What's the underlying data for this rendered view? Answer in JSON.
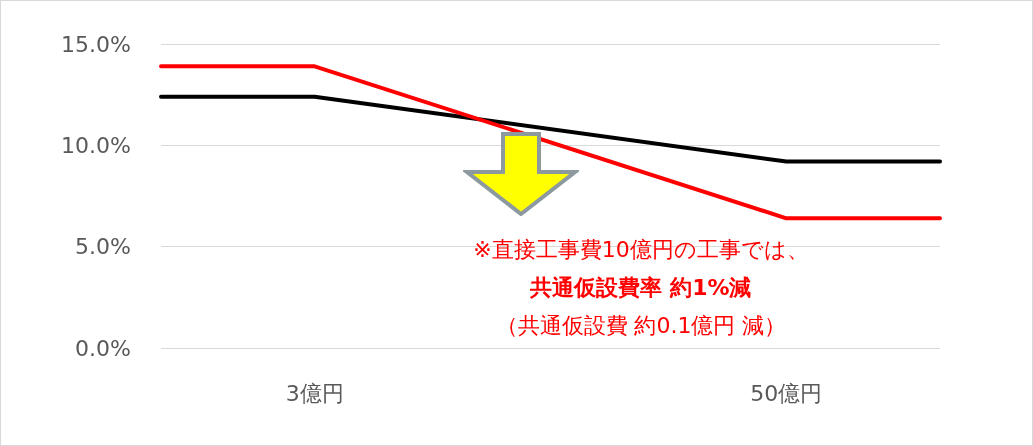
{
  "chart_data": {
    "type": "line",
    "log": "x",
    "xlim": [
      1.2,
      125
    ],
    "xticks": [
      {
        "value": 3,
        "label": "3億円"
      },
      {
        "value": 50,
        "label": "50億円"
      }
    ],
    "ylim": [
      0,
      15
    ],
    "yticks": [
      {
        "value": 0,
        "label": "0.0%"
      },
      {
        "value": 5,
        "label": "5.0%"
      },
      {
        "value": 10,
        "label": "10.0%"
      },
      {
        "value": 15,
        "label": "15.0%"
      }
    ],
    "grid": "y",
    "marker": "none",
    "line_style": "solid",
    "series": [
      {
        "color": "#000000",
        "x": [
          1.2,
          3,
          50,
          125
        ],
        "values": [
          12.4,
          12.4,
          9.2,
          9.2
        ]
      },
      {
        "color": "#ff0000",
        "x": [
          1.2,
          3,
          50,
          125
        ],
        "values": [
          13.9,
          13.9,
          6.4,
          6.4
        ]
      }
    ],
    "annotations": [
      "※直接工事費10億円の工事では、",
      "共通仮設費率 約1%減",
      "（共通仮設費 約0.1億円 減）"
    ]
  }
}
